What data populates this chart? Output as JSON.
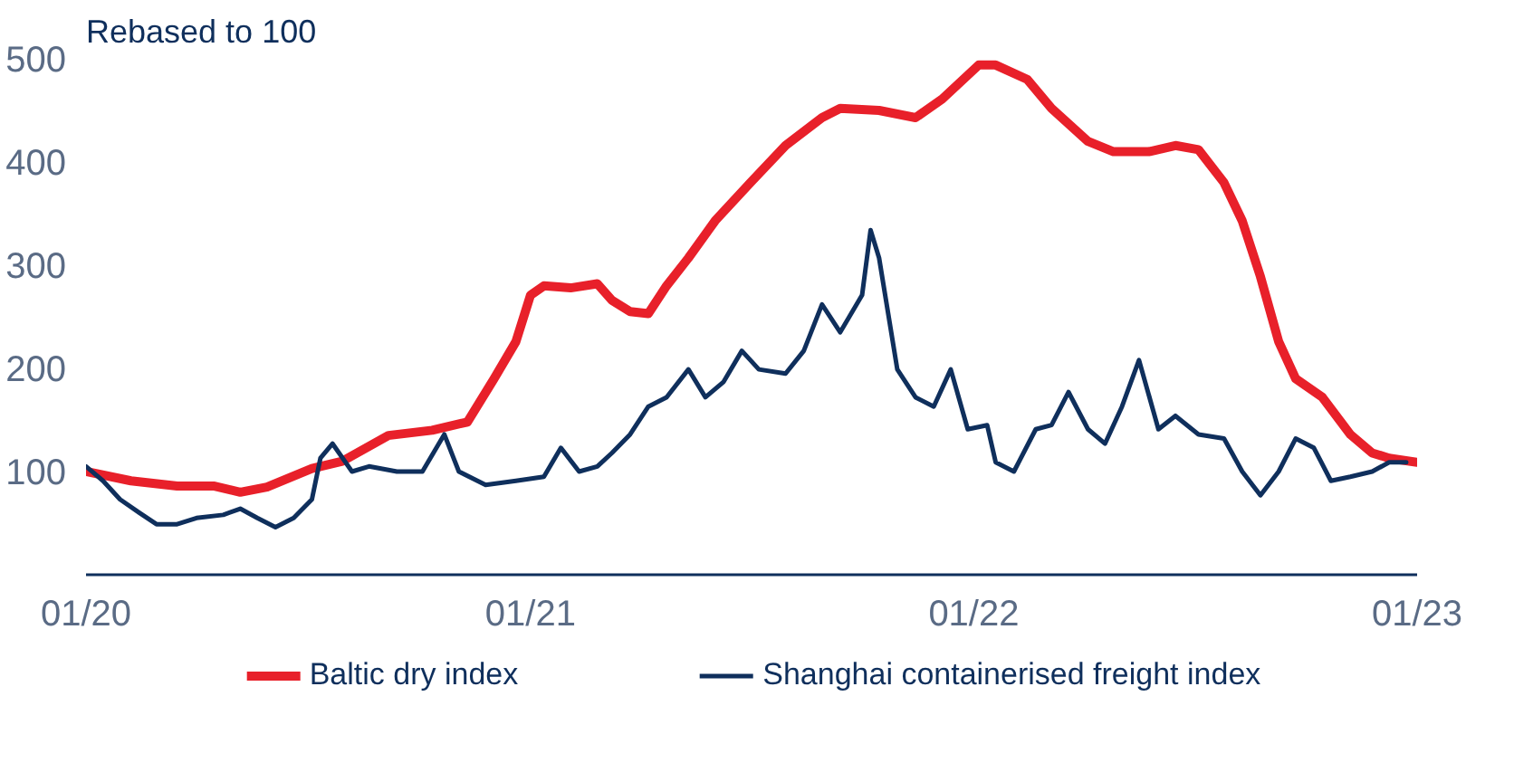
{
  "chart_data": {
    "type": "line",
    "ylabel": "Rebased to 100",
    "xlim": [
      "2020-01-01",
      "2023-01-01"
    ],
    "xticks": [
      {
        "value": "2020-01",
        "label": "01/20"
      },
      {
        "value": "2021-01",
        "label": "01/21"
      },
      {
        "value": "2022-01",
        "label": "01/22"
      },
      {
        "value": "2023-01",
        "label": "01/23"
      }
    ],
    "ylim": [
      0,
      500
    ],
    "yticks": [
      100,
      200,
      300,
      400,
      500
    ],
    "grid": false,
    "legend": "bottom",
    "marker": "none",
    "line_style": "solid",
    "series": [
      {
        "name": "Baltic dry index",
        "color": "#e8202a",
        "x": [
          "2020-01-01",
          "2020-02-07",
          "2020-03-16",
          "2020-04-15",
          "2020-05-07",
          "2020-05-29",
          "2020-07-05",
          "2020-07-30",
          "2020-09-06",
          "2020-10-12",
          "2020-11-10",
          "2020-12-02",
          "2020-12-20",
          "2021-01-01",
          "2021-01-12",
          "2021-02-03",
          "2021-02-25",
          "2021-03-09",
          "2021-03-24",
          "2021-04-08",
          "2021-04-23",
          "2021-05-11",
          "2021-06-02",
          "2021-07-01",
          "2021-07-30",
          "2021-08-29",
          "2021-09-13",
          "2021-10-15",
          "2021-11-14",
          "2021-12-06",
          "2022-01-05",
          "2022-01-19",
          "2022-02-14",
          "2022-03-06",
          "2022-04-05",
          "2022-04-26",
          "2022-05-25",
          "2022-06-16",
          "2022-07-05",
          "2022-07-26",
          "2022-08-10",
          "2022-08-25",
          "2022-09-09",
          "2022-09-23",
          "2022-10-15",
          "2022-11-07",
          "2022-11-25",
          "2022-12-09",
          "2023-01-01"
        ],
        "values": [
          100,
          91,
          86,
          86,
          80,
          85,
          103,
          110,
          135,
          140,
          148,
          190,
          226,
          271,
          280,
          278,
          282,
          266,
          255,
          253,
          280,
          307,
          343,
          380,
          416,
          443,
          452,
          450,
          443,
          461,
          494,
          494,
          480,
          452,
          420,
          410,
          410,
          416,
          412,
          380,
          343,
          289,
          226,
          190,
          172,
          136,
          118,
          113,
          109
        ]
      },
      {
        "name": "Shanghai containerised freight index",
        "color": "#0f2f5c",
        "x": [
          "2020-01-01",
          "2020-01-15",
          "2020-01-29",
          "2020-02-14",
          "2020-02-28",
          "2020-03-16",
          "2020-04-01",
          "2020-04-23",
          "2020-05-07",
          "2020-05-21",
          "2020-06-05",
          "2020-06-20",
          "2020-07-05",
          "2020-07-12",
          "2020-07-22",
          "2020-08-07",
          "2020-08-21",
          "2020-09-13",
          "2020-10-04",
          "2020-10-22",
          "2020-11-03",
          "2020-11-25",
          "2020-12-20",
          "2021-01-12",
          "2021-01-26",
          "2021-02-10",
          "2021-02-25",
          "2021-03-09",
          "2021-03-24",
          "2021-04-08",
          "2021-04-23",
          "2021-05-11",
          "2021-05-25",
          "2021-06-09",
          "2021-06-24",
          "2021-07-08",
          "2021-07-30",
          "2021-08-14",
          "2021-08-29",
          "2021-09-13",
          "2021-10-01",
          "2021-10-08",
          "2021-10-15",
          "2021-10-30",
          "2021-11-14",
          "2021-11-29",
          "2021-12-13",
          "2021-12-27",
          "2022-01-12",
          "2022-01-19",
          "2022-02-03",
          "2022-02-21",
          "2022-03-06",
          "2022-03-20",
          "2022-04-05",
          "2022-04-19",
          "2022-05-03",
          "2022-05-17",
          "2022-06-02",
          "2022-06-16",
          "2022-07-05",
          "2022-07-26",
          "2022-08-10",
          "2022-08-25",
          "2022-09-09",
          "2022-09-23",
          "2022-10-08",
          "2022-10-22",
          "2022-11-07",
          "2022-11-25",
          "2022-12-09",
          "2022-12-23"
        ],
        "values": [
          105,
          91,
          73,
          60,
          49,
          49,
          55,
          58,
          64,
          55,
          46,
          55,
          73,
          113,
          127,
          100,
          105,
          100,
          100,
          136,
          100,
          87,
          91,
          95,
          123,
          100,
          105,
          118,
          136,
          163,
          172,
          199,
          172,
          187,
          217,
          199,
          195,
          217,
          262,
          235,
          271,
          334,
          307,
          199,
          172,
          163,
          199,
          141,
          145,
          109,
          100,
          141,
          145,
          177,
          141,
          127,
          163,
          208,
          141,
          154,
          136,
          132,
          100,
          77,
          100,
          132,
          123,
          91,
          95,
          100,
          109,
          109
        ]
      }
    ]
  }
}
